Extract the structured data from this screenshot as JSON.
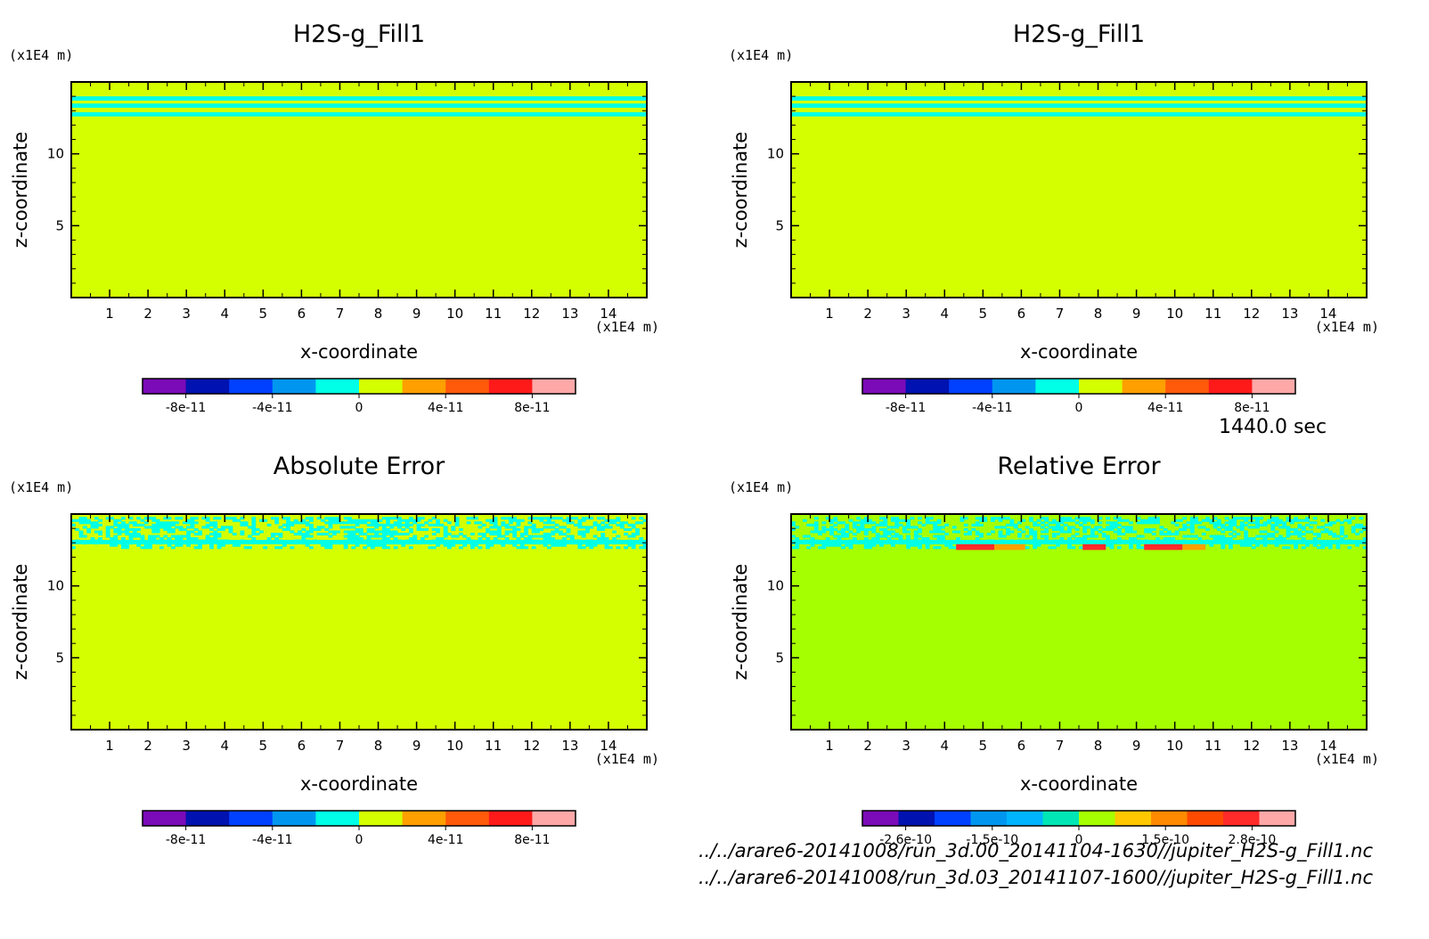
{
  "time_label": "1440.0 sec",
  "footer": {
    "file1": "../../arare6-20141008/run_3d.00_20141104-1630//jupiter_H2S-g_Fill1.nc",
    "file2": "../../arare6-20141008/run_3d.03_20141107-1600//jupiter_H2S-g_Fill1.nc"
  },
  "chart_data": [
    {
      "type": "heatmap",
      "title": "H2S-g_Fill1",
      "xlabel": "x-coordinate",
      "ylabel": "z-coordinate",
      "x_unit": "(x1E4 m)",
      "y_unit": "(x1E4 m)",
      "xlim": [
        0,
        15
      ],
      "ylim": [
        0,
        15
      ],
      "x_ticks": [
        1,
        2,
        3,
        4,
        5,
        6,
        7,
        8,
        9,
        10,
        11,
        12,
        13,
        14
      ],
      "y_ticks": [
        5,
        10
      ],
      "background_color": "#d4ff00",
      "stripes": [
        {
          "z_range": [
            13.7,
            14.0
          ],
          "color": "#00ffe6"
        },
        {
          "z_range": [
            13.2,
            13.5
          ],
          "color": "#00ffe6"
        },
        {
          "z_range": [
            12.6,
            12.9
          ],
          "color": "#00ffe6"
        }
      ],
      "colorbar": {
        "colors": [
          "#7b0ab8",
          "#0012b0",
          "#0040ff",
          "#0096f0",
          "#00ffe6",
          "#d4ff00",
          "#ff9f00",
          "#ff5a0a",
          "#ff1a1a",
          "#ffa8a8"
        ],
        "tick_labels": [
          "-8e-11",
          "-4e-11",
          "0",
          "4e-11",
          "8e-11"
        ]
      }
    },
    {
      "type": "heatmap",
      "title": "H2S-g_Fill1",
      "xlabel": "x-coordinate",
      "ylabel": "z-coordinate",
      "x_unit": "(x1E4 m)",
      "y_unit": "(x1E4 m)",
      "xlim": [
        0,
        15
      ],
      "ylim": [
        0,
        15
      ],
      "x_ticks": [
        1,
        2,
        3,
        4,
        5,
        6,
        7,
        8,
        9,
        10,
        11,
        12,
        13,
        14
      ],
      "y_ticks": [
        5,
        10
      ],
      "background_color": "#d4ff00",
      "stripes": [
        {
          "z_range": [
            13.7,
            14.0
          ],
          "color": "#00ffe6"
        },
        {
          "z_range": [
            13.2,
            13.5
          ],
          "color": "#00ffe6"
        },
        {
          "z_range": [
            12.6,
            12.9
          ],
          "color": "#00ffe6"
        }
      ],
      "colorbar": {
        "colors": [
          "#7b0ab8",
          "#0012b0",
          "#0040ff",
          "#0096f0",
          "#00ffe6",
          "#d4ff00",
          "#ff9f00",
          "#ff5a0a",
          "#ff1a1a",
          "#ffa8a8"
        ],
        "tick_labels": [
          "-8e-11",
          "-4e-11",
          "0",
          "4e-11",
          "8e-11"
        ]
      }
    },
    {
      "type": "heatmap",
      "title": "Absolute Error",
      "xlabel": "x-coordinate",
      "ylabel": "z-coordinate",
      "x_unit": "(x1E4 m)",
      "y_unit": "(x1E4 m)",
      "xlim": [
        0,
        15
      ],
      "ylim": [
        0,
        15
      ],
      "x_ticks": [
        1,
        2,
        3,
        4,
        5,
        6,
        7,
        8,
        9,
        10,
        11,
        12,
        13,
        14
      ],
      "y_ticks": [
        5,
        10
      ],
      "background_color": "#d4ff00",
      "stripes": [
        {
          "z_range": [
            12.9,
            13.2
          ],
          "color": "#00ffe6"
        }
      ],
      "noise_band": {
        "z_range": [
          12.6,
          14.8
        ],
        "color": "#00ffe6"
      },
      "colorbar": {
        "colors": [
          "#7b0ab8",
          "#0012b0",
          "#0040ff",
          "#0096f0",
          "#00ffe6",
          "#d4ff00",
          "#ff9f00",
          "#ff5a0a",
          "#ff1a1a",
          "#ffa8a8"
        ],
        "tick_labels": [
          "-8e-11",
          "-4e-11",
          "0",
          "4e-11",
          "8e-11"
        ]
      }
    },
    {
      "type": "heatmap",
      "title": "Relative Error",
      "xlabel": "x-coordinate",
      "ylabel": "z-coordinate",
      "x_unit": "(x1E4 m)",
      "y_unit": "(x1E4 m)",
      "xlim": [
        0,
        15
      ],
      "ylim": [
        0,
        15
      ],
      "x_ticks": [
        1,
        2,
        3,
        4,
        5,
        6,
        7,
        8,
        9,
        10,
        11,
        12,
        13,
        14
      ],
      "y_ticks": [
        5,
        10
      ],
      "background_color": "#a6ff00",
      "stripes": [
        {
          "z_range": [
            12.9,
            13.2
          ],
          "color": "#00ffe6"
        }
      ],
      "noise_band": {
        "z_range": [
          12.6,
          14.8
        ],
        "color": "#00ffe6"
      },
      "hot_spots": [
        {
          "x_range": [
            4.3,
            5.3
          ],
          "z_range": [
            12.5,
            12.9
          ],
          "color": "#ff2a2a"
        },
        {
          "x_range": [
            5.3,
            6.1
          ],
          "z_range": [
            12.5,
            12.9
          ],
          "color": "#ff9f00"
        },
        {
          "x_range": [
            7.6,
            8.2
          ],
          "z_range": [
            12.5,
            12.9
          ],
          "color": "#ff2a2a"
        },
        {
          "x_range": [
            9.2,
            10.2
          ],
          "z_range": [
            12.5,
            12.9
          ],
          "color": "#ff2a2a"
        },
        {
          "x_range": [
            10.2,
            10.8
          ],
          "z_range": [
            12.5,
            12.9
          ],
          "color": "#ff9f00"
        }
      ],
      "colorbar": {
        "colors": [
          "#7b0ab8",
          "#0012b0",
          "#0040ff",
          "#0096f0",
          "#00b4ff",
          "#00e6b4",
          "#a6ff00",
          "#ffc800",
          "#ff8a00",
          "#ff4a00",
          "#ff2a2a",
          "#ffa8a8"
        ],
        "tick_labels": [
          "-2.6e-10",
          "-1.5e-10",
          "0",
          "1.5e-10",
          "2.8e-10"
        ]
      }
    }
  ]
}
